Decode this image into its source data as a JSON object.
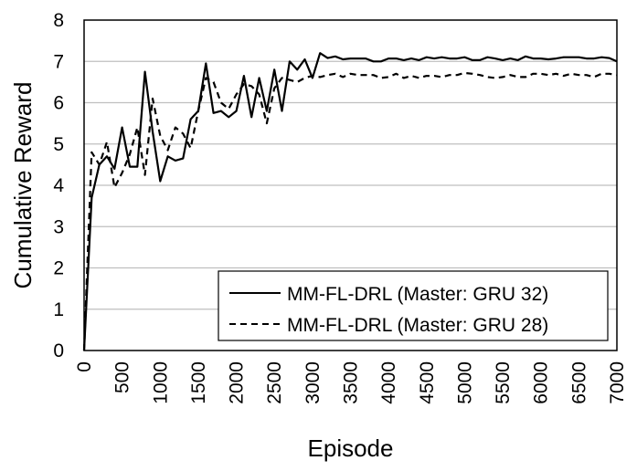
{
  "chart_data": {
    "type": "line",
    "xlabel": "Episode",
    "ylabel": "Cumulative Reward",
    "xlim": [
      0,
      7000
    ],
    "ylim": [
      0,
      8
    ],
    "x_ticks": [
      "0",
      "500",
      "1000",
      "1500",
      "2000",
      "2500",
      "3000",
      "3500",
      "4000",
      "4500",
      "5000",
      "5500",
      "6000",
      "6500",
      "7000"
    ],
    "y_ticks": [
      "0",
      "1",
      "2",
      "3",
      "4",
      "5",
      "6",
      "7",
      "8"
    ],
    "grid": "horizontal",
    "legend_position": "bottom-right",
    "series": [
      {
        "name": "MM-FL-DRL (Master: GRU 32)",
        "style": "solid",
        "color": "#000000",
        "points": [
          [
            0,
            0
          ],
          [
            100,
            3.7
          ],
          [
            200,
            4.5
          ],
          [
            300,
            4.7
          ],
          [
            400,
            4.4
          ],
          [
            500,
            5.4
          ],
          [
            600,
            4.45
          ],
          [
            700,
            4.45
          ],
          [
            800,
            6.75
          ],
          [
            900,
            5.3
          ],
          [
            1000,
            4.1
          ],
          [
            1100,
            4.7
          ],
          [
            1200,
            4.6
          ],
          [
            1300,
            4.65
          ],
          [
            1400,
            5.6
          ],
          [
            1500,
            5.8
          ],
          [
            1600,
            6.95
          ],
          [
            1700,
            5.75
          ],
          [
            1800,
            5.8
          ],
          [
            1900,
            5.65
          ],
          [
            2000,
            5.8
          ],
          [
            2100,
            6.65
          ],
          [
            2200,
            5.65
          ],
          [
            2300,
            6.6
          ],
          [
            2400,
            5.8
          ],
          [
            2500,
            6.8
          ],
          [
            2600,
            5.8
          ],
          [
            2700,
            7.0
          ],
          [
            2800,
            6.8
          ],
          [
            2900,
            7.05
          ],
          [
            3000,
            6.6
          ],
          [
            3100,
            7.2
          ],
          [
            3200,
            7.08
          ],
          [
            3300,
            7.12
          ],
          [
            3400,
            7.05
          ],
          [
            3500,
            7.07
          ],
          [
            3600,
            7.07
          ],
          [
            3700,
            7.07
          ],
          [
            3800,
            7.0
          ],
          [
            3900,
            7.0
          ],
          [
            4000,
            7.07
          ],
          [
            4100,
            7.07
          ],
          [
            4200,
            7.03
          ],
          [
            4300,
            7.07
          ],
          [
            4400,
            7.03
          ],
          [
            4500,
            7.1
          ],
          [
            4600,
            7.07
          ],
          [
            4700,
            7.1
          ],
          [
            4800,
            7.07
          ],
          [
            4900,
            7.07
          ],
          [
            5000,
            7.1
          ],
          [
            5100,
            7.03
          ],
          [
            5200,
            7.03
          ],
          [
            5300,
            7.1
          ],
          [
            5400,
            7.07
          ],
          [
            5500,
            7.03
          ],
          [
            5600,
            7.07
          ],
          [
            5700,
            7.03
          ],
          [
            5800,
            7.12
          ],
          [
            5900,
            7.07
          ],
          [
            6000,
            7.07
          ],
          [
            6100,
            7.05
          ],
          [
            6200,
            7.07
          ],
          [
            6300,
            7.1
          ],
          [
            6400,
            7.1
          ],
          [
            6500,
            7.1
          ],
          [
            6600,
            7.07
          ],
          [
            6700,
            7.07
          ],
          [
            6800,
            7.1
          ],
          [
            6900,
            7.08
          ],
          [
            7000,
            7.0
          ]
        ]
      },
      {
        "name": "MM-FL-DRL (Master: GRU 28)",
        "style": "dashed",
        "color": "#000000",
        "points": [
          [
            0,
            0
          ],
          [
            100,
            4.8
          ],
          [
            200,
            4.5
          ],
          [
            300,
            5.05
          ],
          [
            400,
            3.95
          ],
          [
            500,
            4.3
          ],
          [
            600,
            4.75
          ],
          [
            700,
            5.4
          ],
          [
            800,
            4.25
          ],
          [
            900,
            6.1
          ],
          [
            1000,
            5.2
          ],
          [
            1100,
            4.85
          ],
          [
            1200,
            5.4
          ],
          [
            1300,
            5.25
          ],
          [
            1400,
            4.9
          ],
          [
            1500,
            5.8
          ],
          [
            1600,
            6.6
          ],
          [
            1700,
            6.5
          ],
          [
            1800,
            6.0
          ],
          [
            1900,
            5.85
          ],
          [
            2000,
            6.2
          ],
          [
            2100,
            6.45
          ],
          [
            2200,
            6.4
          ],
          [
            2300,
            6.2
          ],
          [
            2400,
            5.5
          ],
          [
            2500,
            6.35
          ],
          [
            2600,
            6.6
          ],
          [
            2700,
            6.55
          ],
          [
            2800,
            6.5
          ],
          [
            2900,
            6.6
          ],
          [
            3000,
            6.65
          ],
          [
            3100,
            6.62
          ],
          [
            3200,
            6.67
          ],
          [
            3300,
            6.7
          ],
          [
            3400,
            6.62
          ],
          [
            3500,
            6.7
          ],
          [
            3600,
            6.67
          ],
          [
            3700,
            6.67
          ],
          [
            3800,
            6.67
          ],
          [
            3900,
            6.6
          ],
          [
            4000,
            6.62
          ],
          [
            4100,
            6.7
          ],
          [
            4200,
            6.6
          ],
          [
            4300,
            6.65
          ],
          [
            4400,
            6.6
          ],
          [
            4500,
            6.65
          ],
          [
            4600,
            6.65
          ],
          [
            4700,
            6.62
          ],
          [
            4800,
            6.67
          ],
          [
            4900,
            6.67
          ],
          [
            5000,
            6.72
          ],
          [
            5100,
            6.7
          ],
          [
            5200,
            6.67
          ],
          [
            5300,
            6.62
          ],
          [
            5400,
            6.6
          ],
          [
            5500,
            6.62
          ],
          [
            5600,
            6.67
          ],
          [
            5700,
            6.62
          ],
          [
            5800,
            6.62
          ],
          [
            5900,
            6.7
          ],
          [
            6000,
            6.7
          ],
          [
            6100,
            6.67
          ],
          [
            6200,
            6.7
          ],
          [
            6300,
            6.65
          ],
          [
            6400,
            6.7
          ],
          [
            6500,
            6.67
          ],
          [
            6600,
            6.67
          ],
          [
            6700,
            6.62
          ],
          [
            6800,
            6.7
          ],
          [
            6900,
            6.7
          ],
          [
            7000,
            6.67
          ]
        ]
      }
    ]
  }
}
